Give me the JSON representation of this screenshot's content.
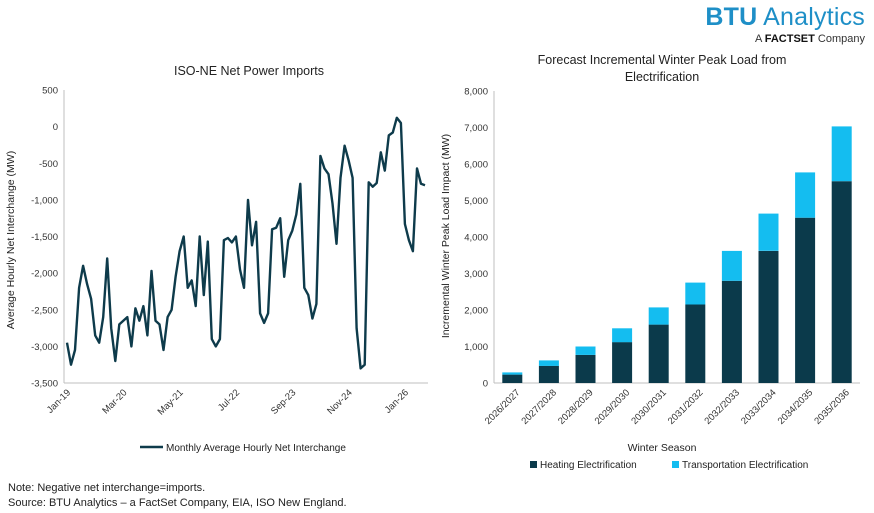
{
  "brand": {
    "name_bold": "BTU",
    "name_rest": " Analytics",
    "sub_prefix": "A ",
    "sub_bold": "FACTSET",
    "sub_rest": " Company"
  },
  "notes": {
    "note": "Note: Negative net interchange=imports.",
    "source": "Source: BTU Analytics – a FactSet Company, EIA, ISO New England."
  },
  "colors": {
    "line": "#0e3b4b",
    "heating": "#0b3a4b",
    "transportation": "#14bdf0",
    "axis": "#bfbfbf"
  },
  "chart_data": [
    {
      "type": "line",
      "title": "ISO-NE Net Power Imports",
      "xlabel": "",
      "ylabel": "Average Hourly Net Interchange (MW)",
      "ylim": [
        -3500,
        500
      ],
      "yticks": [
        500,
        0,
        -500,
        -1000,
        -1500,
        -2000,
        -2500,
        -3000,
        -3500
      ],
      "ytick_labels": [
        "500",
        "0",
        "-500",
        "-1,000",
        "-1,500",
        "-2,000",
        "-2,500",
        "-3,000",
        "-3,500"
      ],
      "xtick_labels": [
        "Jan-19",
        "Mar-20",
        "May-21",
        "Jul-22",
        "Sep-23",
        "Nov-24",
        "Jan-26"
      ],
      "xtick_index": [
        0,
        14,
        28,
        42,
        56,
        70,
        84
      ],
      "grid": false,
      "legend": "bottom",
      "series": [
        {
          "name": "Monthly Average Hourly Net Interchange",
          "values": [
            -2950,
            -3250,
            -3050,
            -2200,
            -1900,
            -2150,
            -2350,
            -2850,
            -2950,
            -2600,
            -1800,
            -2750,
            -3200,
            -2700,
            -2650,
            -2600,
            -3000,
            -2480,
            -2650,
            -2450,
            -2850,
            -1970,
            -2650,
            -2700,
            -3050,
            -2600,
            -2500,
            -2050,
            -1700,
            -1500,
            -2200,
            -2100,
            -2450,
            -1500,
            -2300,
            -1570,
            -2900,
            -3000,
            -2900,
            -1550,
            -1520,
            -1580,
            -1500,
            -1950,
            -2200,
            -1000,
            -1620,
            -1300,
            -2550,
            -2680,
            -2550,
            -1400,
            -1380,
            -1250,
            -2050,
            -1550,
            -1420,
            -1200,
            -780,
            -2200,
            -2300,
            -2620,
            -2420,
            -400,
            -570,
            -650,
            -1050,
            -1600,
            -700,
            -260,
            -460,
            -700,
            -2750,
            -3300,
            -3250,
            -760,
            -820,
            -770,
            -350,
            -600,
            -120,
            -80,
            120,
            50,
            -1330,
            -1550,
            -1700,
            -570,
            -780,
            -800
          ]
        }
      ]
    },
    {
      "type": "bar",
      "stacked": true,
      "title": "Forecast Incremental Winter Peak Load from Electrification",
      "xlabel": "Winter Season",
      "ylabel": "Incremental Winter Peak Load Impact (MW)",
      "ylim": [
        0,
        8000
      ],
      "yticks": [
        0,
        1000,
        2000,
        3000,
        4000,
        5000,
        6000,
        7000,
        8000
      ],
      "ytick_labels": [
        "0",
        "1,000",
        "2,000",
        "3,000",
        "4,000",
        "5,000",
        "6,000",
        "7,000",
        "8,000"
      ],
      "categories": [
        "2026/2027",
        "2027/2028",
        "2028/2029",
        "2029/2030",
        "2030/2031",
        "2031/2032",
        "2032/2033",
        "2033/2034",
        "2034/2035",
        "2035/2036"
      ],
      "grid": false,
      "legend": "bottom",
      "series": [
        {
          "name": "Heating Electrification",
          "values": [
            230,
            470,
            770,
            1120,
            1600,
            2150,
            2800,
            3620,
            4530,
            5530
          ]
        },
        {
          "name": "Transportation Electrification",
          "values": [
            60,
            150,
            230,
            380,
            470,
            600,
            820,
            1020,
            1240,
            1500
          ]
        }
      ]
    }
  ]
}
